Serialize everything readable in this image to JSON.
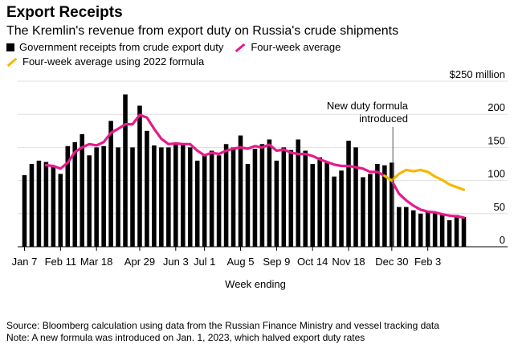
{
  "title": "Export Receipts",
  "subtitle": "The Kremlin's revenue from export duty on Russia's crude shipments",
  "legend": {
    "bars": "Government receipts from crude export duty",
    "avg": "Four-week average",
    "avg2022": "Four-week average using 2022 formula"
  },
  "annotation": {
    "line1": "New duty formula",
    "line2": "introduced"
  },
  "source": "Source: Bloomberg calculation using data from the Russian Finance Ministry and vessel tracking data",
  "note": "Note: A new formula was introduced on Jan. 1, 2023, which halved export duty rates",
  "colors": {
    "bars": "#000000",
    "avg": "#e8198b",
    "avg2022": "#f5b800",
    "marker": "#555555"
  },
  "chart_data": {
    "type": "bar",
    "xlabel": "Week ending",
    "ylabel": "",
    "y_unit_label": "$250 million",
    "ylim": [
      0,
      250
    ],
    "yticks": [
      0,
      50,
      100,
      150,
      200,
      250
    ],
    "ytick_labels": [
      "0",
      "50",
      "100",
      "150",
      "200",
      "$250 million"
    ],
    "x_tick_labels": [
      {
        "label": "Jan 7",
        "index": 0
      },
      {
        "label": "Feb 11",
        "index": 5
      },
      {
        "label": "Mar 18",
        "index": 10
      },
      {
        "label": "Apr 29",
        "index": 16
      },
      {
        "label": "Jun 3",
        "index": 21
      },
      {
        "label": "Jul 1",
        "index": 25
      },
      {
        "label": "Aug 5",
        "index": 30
      },
      {
        "label": "Sep 9",
        "index": 35
      },
      {
        "label": "Oct 14",
        "index": 40
      },
      {
        "label": "Nov 18",
        "index": 45
      },
      {
        "label": "Dec 30",
        "index": 51
      },
      {
        "label": "Feb 3",
        "index": 56
      }
    ],
    "formula_change_index": 51,
    "series": [
      {
        "name": "Government receipts from crude export duty",
        "kind": "bar",
        "values": [
          108,
          125,
          130,
          128,
          123,
          110,
          152,
          158,
          170,
          138,
          150,
          152,
          190,
          150,
          230,
          150,
          213,
          175,
          153,
          150,
          150,
          155,
          155,
          150,
          130,
          138,
          145,
          138,
          155,
          150,
          168,
          125,
          148,
          155,
          162,
          130,
          150,
          146,
          162,
          145,
          125,
          135,
          128,
          106,
          115,
          160,
          150,
          105,
          110,
          125,
          123,
          127,
          60,
          60,
          55,
          50,
          53,
          52,
          50,
          40,
          48,
          45
        ]
      },
      {
        "name": "Four-week average",
        "kind": "line",
        "values": [
          null,
          null,
          null,
          123,
          122,
          118,
          127,
          143,
          150,
          155,
          153,
          158,
          172,
          178,
          185,
          185,
          199,
          195,
          178,
          163,
          155,
          156,
          155,
          155,
          145,
          138,
          142,
          140,
          145,
          148,
          150,
          148,
          152,
          150,
          154,
          145,
          147,
          142,
          140,
          140,
          137,
          132,
          128,
          124,
          122,
          122,
          120,
          118,
          113,
          113,
          107,
          100,
          80,
          70,
          62,
          56,
          53,
          52,
          49,
          47,
          46,
          44
        ]
      },
      {
        "name": "Four-week average using 2022 formula",
        "kind": "line",
        "values": [
          null,
          null,
          null,
          null,
          null,
          null,
          null,
          null,
          null,
          null,
          null,
          null,
          null,
          null,
          null,
          null,
          null,
          null,
          null,
          null,
          null,
          null,
          null,
          null,
          null,
          null,
          null,
          null,
          null,
          null,
          null,
          null,
          null,
          null,
          null,
          null,
          null,
          null,
          null,
          null,
          null,
          null,
          null,
          null,
          null,
          null,
          null,
          null,
          null,
          null,
          107,
          100,
          110,
          116,
          114,
          116,
          113,
          106,
          101,
          94,
          90,
          86
        ]
      }
    ]
  }
}
